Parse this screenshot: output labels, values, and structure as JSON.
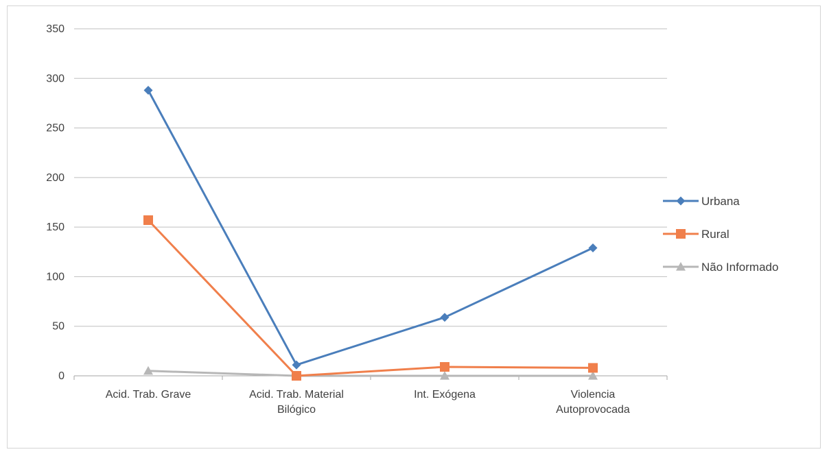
{
  "chart_data": {
    "type": "line",
    "title": "",
    "xlabel": "",
    "ylabel": "",
    "ylim": [
      0,
      350
    ],
    "yticks": [
      0,
      50,
      100,
      150,
      200,
      250,
      300,
      350
    ],
    "grid": true,
    "legend_position": "right",
    "categories": [
      [
        "Acid. Trab. Grave"
      ],
      [
        "Acid. Trab. Material",
        "Bilógico"
      ],
      [
        "Int. Exógena"
      ],
      [
        "Violencia",
        "Autoprovocada"
      ]
    ],
    "series": [
      {
        "name": "Urbana",
        "values": [
          288,
          11,
          59,
          129
        ],
        "color": "#4a7ebb",
        "marker": "diamond"
      },
      {
        "name": "Rural",
        "values": [
          157,
          0,
          9,
          8
        ],
        "color": "#f07f4b",
        "marker": "square"
      },
      {
        "name": "Não Informado",
        "values": [
          5,
          0,
          0,
          0
        ],
        "color": "#b7b7b7",
        "marker": "triangle"
      }
    ]
  }
}
